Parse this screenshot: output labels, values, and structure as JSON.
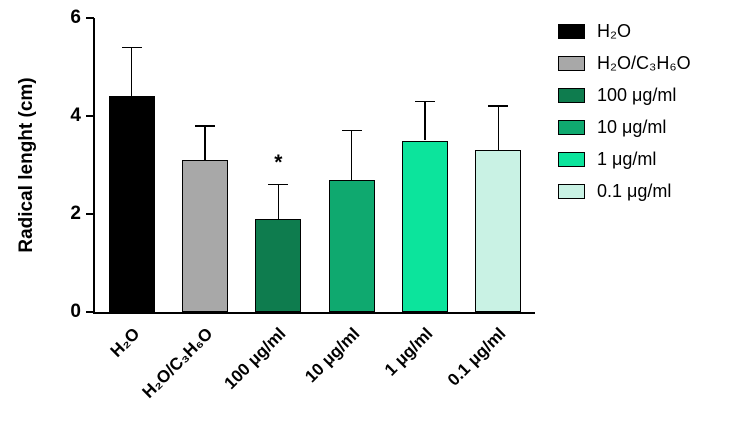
{
  "chart_data": {
    "type": "bar",
    "title": "",
    "xlabel": "",
    "ylabel": "Radical lenght (cm)",
    "ylim": [
      0,
      6
    ],
    "yticks": [
      0,
      2,
      4,
      6
    ],
    "grid": false,
    "legend_position": "right",
    "categories": [
      "H₂O",
      "H₂O/C₃H₆O",
      "100 μg/ml",
      "10 μg/ml",
      "1 μg/ml",
      "0.1 μg/ml"
    ],
    "values": [
      4.4,
      3.1,
      1.9,
      2.7,
      3.5,
      3.3
    ],
    "errors_upper": [
      1.0,
      0.7,
      0.7,
      1.0,
      0.8,
      0.9
    ],
    "bar_colors": [
      "#000000",
      "#a8a8a8",
      "#0e7c4e",
      "#0fa96f",
      "#0ce49c",
      "#c9f2e4"
    ],
    "legend": [
      "H₂O",
      "H₂O/C₃H₆O",
      "100 μg/ml",
      "10 μg/ml",
      "1 μg/ml",
      "0.1 μg/ml"
    ],
    "annotations": [
      {
        "bar_index": 2,
        "text": "*"
      }
    ]
  }
}
